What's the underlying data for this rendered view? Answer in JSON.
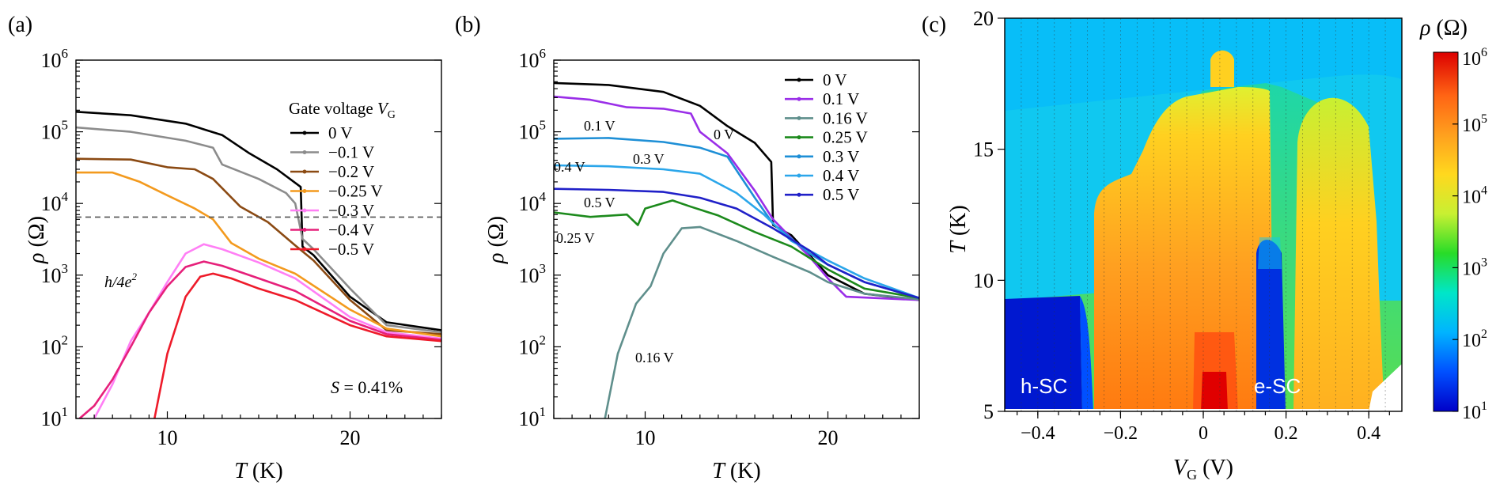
{
  "figure": {
    "panel_labels": [
      "(a)",
      "(b)",
      "(c)"
    ]
  },
  "chart_data": [
    {
      "panel": "(a)",
      "type": "line",
      "xlabel_symbol": "T",
      "xlabel_unit": "(K)",
      "ylabel_symbol": "ρ",
      "ylabel_unit": "(Ω)",
      "x_scale": "linear",
      "y_scale": "log",
      "xlim": [
        5,
        25
      ],
      "ylim_exp": [
        1,
        6
      ],
      "x_ticks": [
        10,
        20
      ],
      "y_tick_exponents": [
        1,
        2,
        3,
        4,
        5,
        6
      ],
      "y_tick_base": "10",
      "legend_title_prefix": "Gate voltage ",
      "legend_title_symbol": "V",
      "legend_title_sub": "G",
      "legend_position": "top-right",
      "reference_line": {
        "label_prefix": "h/4e",
        "label_exp": "2",
        "value": 6450,
        "style": "dashed"
      },
      "annotation": {
        "symbol": "S",
        "text": " = 0.41%"
      },
      "series": [
        {
          "name": "0 V",
          "color": "#000000",
          "points": [
            [
              5,
              190000
            ],
            [
              8,
              170000
            ],
            [
              11,
              130000
            ],
            [
              13,
              90000
            ],
            [
              14.5,
              50000
            ],
            [
              16,
              30000
            ],
            [
              17.3,
              17000
            ],
            [
              17.4,
              2500
            ],
            [
              18,
              1900
            ],
            [
              20,
              500
            ],
            [
              22,
              220
            ],
            [
              25,
              170
            ]
          ]
        },
        {
          "name": "−0.1 V",
          "color": "#8c8c8c",
          "points": [
            [
              5,
              115000
            ],
            [
              8,
              100000
            ],
            [
              11,
              75000
            ],
            [
              12.5,
              60000
            ],
            [
              13,
              35000
            ],
            [
              15,
              22000
            ],
            [
              16.5,
              14000
            ],
            [
              17,
              10000
            ],
            [
              17.4,
              3200
            ],
            [
              18,
              2300
            ],
            [
              20,
              650
            ],
            [
              22,
              200
            ],
            [
              25,
              160
            ]
          ]
        },
        {
          "name": "−0.2 V",
          "color": "#8b4a13",
          "points": [
            [
              5,
              42000
            ],
            [
              8,
              41000
            ],
            [
              10,
              32000
            ],
            [
              11.5,
              30000
            ],
            [
              12.5,
              22000
            ],
            [
              14,
              9000
            ],
            [
              15.5,
              5500
            ],
            [
              17,
              2600
            ],
            [
              18,
              1600
            ],
            [
              20,
              450
            ],
            [
              22,
              170
            ],
            [
              25,
              150
            ]
          ]
        },
        {
          "name": "−0.25 V",
          "color": "#f39a1e",
          "points": [
            [
              5,
              27000
            ],
            [
              7,
              27000
            ],
            [
              8.5,
              20000
            ],
            [
              10,
              13000
            ],
            [
              11.5,
              8500
            ],
            [
              12.5,
              6000
            ],
            [
              13.5,
              2800
            ],
            [
              15,
              1700
            ],
            [
              17,
              1050
            ],
            [
              20,
              330
            ],
            [
              22,
              180
            ],
            [
              25,
              140
            ]
          ]
        },
        {
          "name": "−0.3 V",
          "color": "#ff7ff5",
          "points": [
            [
              6,
              10
            ],
            [
              7,
              30
            ],
            [
              8,
              120
            ],
            [
              9,
              300
            ],
            [
              10,
              800
            ],
            [
              11,
              2000
            ],
            [
              12,
              2700
            ],
            [
              13,
              2300
            ],
            [
              15,
              1500
            ],
            [
              17,
              900
            ],
            [
              20,
              260
            ],
            [
              22,
              160
            ],
            [
              25,
              130
            ]
          ]
        },
        {
          "name": "−0.4 V",
          "color": "#e6207a",
          "points": [
            [
              5.2,
              10
            ],
            [
              6,
              15
            ],
            [
              7,
              35
            ],
            [
              8,
              100
            ],
            [
              9,
              300
            ],
            [
              10,
              700
            ],
            [
              11,
              1300
            ],
            [
              12,
              1550
            ],
            [
              13,
              1350
            ],
            [
              15,
              900
            ],
            [
              17,
              600
            ],
            [
              20,
              230
            ],
            [
              22,
              150
            ],
            [
              25,
              125
            ]
          ]
        },
        {
          "name": "−0.5 V",
          "color": "#ee1b2a",
          "points": [
            [
              9.3,
              10
            ],
            [
              10,
              80
            ],
            [
              11,
              500
            ],
            [
              11.8,
              950
            ],
            [
              12.5,
              1050
            ],
            [
              13.5,
              900
            ],
            [
              15,
              650
            ],
            [
              17,
              450
            ],
            [
              20,
              200
            ],
            [
              22,
              140
            ],
            [
              25,
              120
            ]
          ]
        }
      ]
    },
    {
      "panel": "(b)",
      "type": "line",
      "xlabel_symbol": "T",
      "xlabel_unit": "(K)",
      "ylabel_symbol": "ρ",
      "ylabel_unit": "(Ω)",
      "x_scale": "linear",
      "y_scale": "log",
      "xlim": [
        5,
        25
      ],
      "ylim_exp": [
        1,
        6
      ],
      "x_ticks": [
        10,
        20
      ],
      "y_tick_exponents": [
        1,
        2,
        3,
        4,
        5,
        6
      ],
      "y_tick_base": "10",
      "legend_position": "top-right",
      "series": [
        {
          "name": "0 V",
          "color": "#000000",
          "label": "0 V",
          "points": [
            [
              5,
              480000
            ],
            [
              8,
              450000
            ],
            [
              11,
              360000
            ],
            [
              13,
              230000
            ],
            [
              14.5,
              120000
            ],
            [
              16,
              70000
            ],
            [
              16.9,
              38000
            ],
            [
              17,
              5000
            ],
            [
              18,
              3600
            ],
            [
              20,
              1000
            ],
            [
              22,
              550
            ],
            [
              25,
              450
            ]
          ]
        },
        {
          "name": "0.1 V",
          "color": "#9a2ee8",
          "label": "0.1 V",
          "points": [
            [
              5,
              310000
            ],
            [
              7,
              280000
            ],
            [
              9,
              220000
            ],
            [
              11,
              210000
            ],
            [
              12.5,
              180000
            ],
            [
              13,
              100000
            ],
            [
              14.5,
              50000
            ],
            [
              16,
              15000
            ],
            [
              17,
              6000
            ],
            [
              19,
              1800
            ],
            [
              20,
              900
            ],
            [
              21,
              500
            ],
            [
              25,
              450
            ]
          ]
        },
        {
          "name": "0.16 V",
          "color": "#5f8f8c",
          "label": "0.16 V",
          "points": [
            [
              7.8,
              10
            ],
            [
              8.5,
              80
            ],
            [
              9.5,
              400
            ],
            [
              10.3,
              700
            ],
            [
              11,
              2000
            ],
            [
              12,
              4500
            ],
            [
              13,
              4700
            ],
            [
              15,
              3000
            ],
            [
              17,
              1800
            ],
            [
              19,
              1100
            ],
            [
              20,
              800
            ],
            [
              22,
              550
            ],
            [
              25,
              460
            ]
          ]
        },
        {
          "name": "0.25 V",
          "color": "#1c8a1c",
          "label": "0.25 V",
          "points": [
            [
              5,
              7500
            ],
            [
              7,
              6500
            ],
            [
              9,
              7000
            ],
            [
              9.6,
              5000
            ],
            [
              10,
              8500
            ],
            [
              11.5,
              11000
            ],
            [
              12.5,
              9000
            ],
            [
              14,
              6800
            ],
            [
              16,
              4000
            ],
            [
              18,
              2500
            ],
            [
              20,
              1200
            ],
            [
              22,
              650
            ],
            [
              25,
              480
            ]
          ]
        },
        {
          "name": "0.3 V",
          "color": "#1e8fd6",
          "label": "0.3 V",
          "points": [
            [
              5,
              80000
            ],
            [
              8,
              82000
            ],
            [
              11,
              72000
            ],
            [
              13,
              60000
            ],
            [
              14.5,
              45000
            ],
            [
              16,
              12000
            ],
            [
              17,
              5200
            ],
            [
              19,
              2000
            ],
            [
              20,
              1400
            ],
            [
              22,
              800
            ],
            [
              25,
              480
            ]
          ]
        },
        {
          "name": "0.4 V",
          "color": "#2ba6ea",
          "label": "0.4 V",
          "points": [
            [
              5,
              34000
            ],
            [
              8,
              33000
            ],
            [
              11,
              30000
            ],
            [
              13,
              26000
            ],
            [
              15,
              14000
            ],
            [
              16.5,
              7000
            ],
            [
              18,
              3000
            ],
            [
              20,
              1600
            ],
            [
              22,
              900
            ],
            [
              25,
              480
            ]
          ]
        },
        {
          "name": "0.5 V",
          "color": "#2020c8",
          "label": "0.5 V",
          "points": [
            [
              5,
              16000
            ],
            [
              8,
              15500
            ],
            [
              11,
              14500
            ],
            [
              13,
              12000
            ],
            [
              15,
              8500
            ],
            [
              17,
              4500
            ],
            [
              19,
              2200
            ],
            [
              20,
              1400
            ],
            [
              22,
              800
            ],
            [
              25,
              480
            ]
          ]
        }
      ]
    },
    {
      "panel": "(c)",
      "type": "heatmap",
      "xlabel_symbol": "V",
      "xlabel_sub": "G",
      "xlabel_unit": "(V)",
      "ylabel_symbol": "T",
      "ylabel_unit": "(K)",
      "xlim": [
        -0.48,
        0.48
      ],
      "ylim": [
        5,
        20
      ],
      "x_ticks": [
        -0.4,
        -0.2,
        0,
        0.2,
        0.4
      ],
      "x_tick_labels": [
        "−0.4",
        "−0.2",
        "0",
        "0.2",
        "0.4"
      ],
      "y_ticks": [
        5,
        10,
        15,
        20
      ],
      "colorbar_label_symbol": "ρ",
      "colorbar_label_unit": "(Ω)",
      "colorbar_scale": "log",
      "colorbar_exponents": [
        1,
        2,
        3,
        4,
        5,
        6
      ],
      "colorbar_base": "10",
      "colormap": [
        "#0000c8",
        "#0050ff",
        "#00b4ff",
        "#00e6c8",
        "#28dc28",
        "#c8f032",
        "#ffd81e",
        "#ffa01e",
        "#ff6414",
        "#dc0000"
      ],
      "annotations": [
        {
          "text": "h-SC",
          "vg": -0.42,
          "t": 5.9
        },
        {
          "text": "e-SC",
          "vg": 0.185,
          "t": 5.9
        }
      ]
    }
  ]
}
